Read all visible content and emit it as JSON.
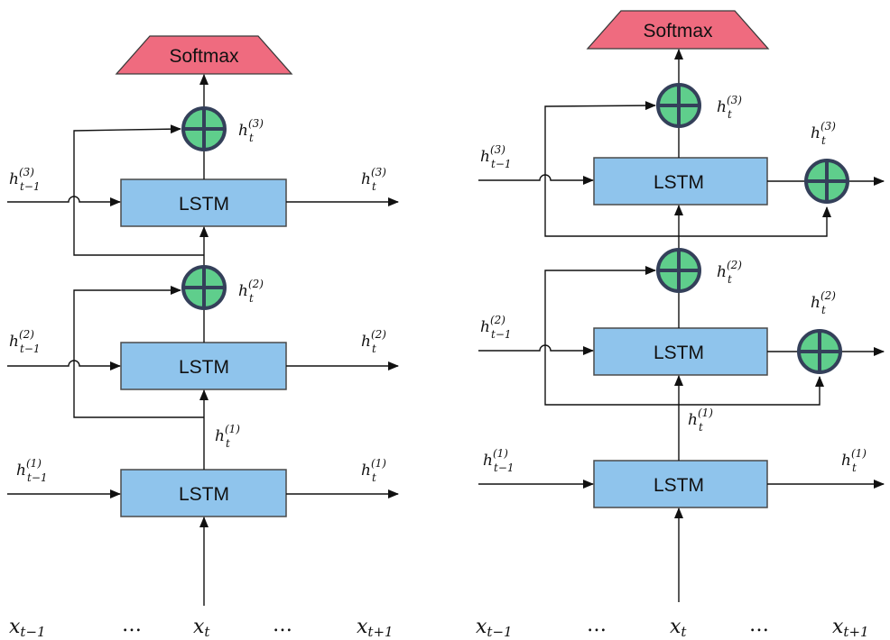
{
  "labels": {
    "lstm": "LSTM",
    "softmax": "Softmax",
    "ellipsis": "…"
  },
  "symbols": {
    "h": "h",
    "x": "x",
    "sub_t": "t",
    "sub_prev": "t−1",
    "sub_next": "t+1",
    "sup_1": "(1)",
    "sup_2": "(2)",
    "sup_3": "(3)"
  },
  "colors": {
    "lstm_fill": "#8fc4ec",
    "softmax_fill": "#ef6b7f",
    "add_fill": "#5fce8c",
    "add_stroke": "#34405a"
  },
  "icons": {
    "add_node": "circle-plus-icon",
    "arrow": "arrowhead-icon"
  }
}
